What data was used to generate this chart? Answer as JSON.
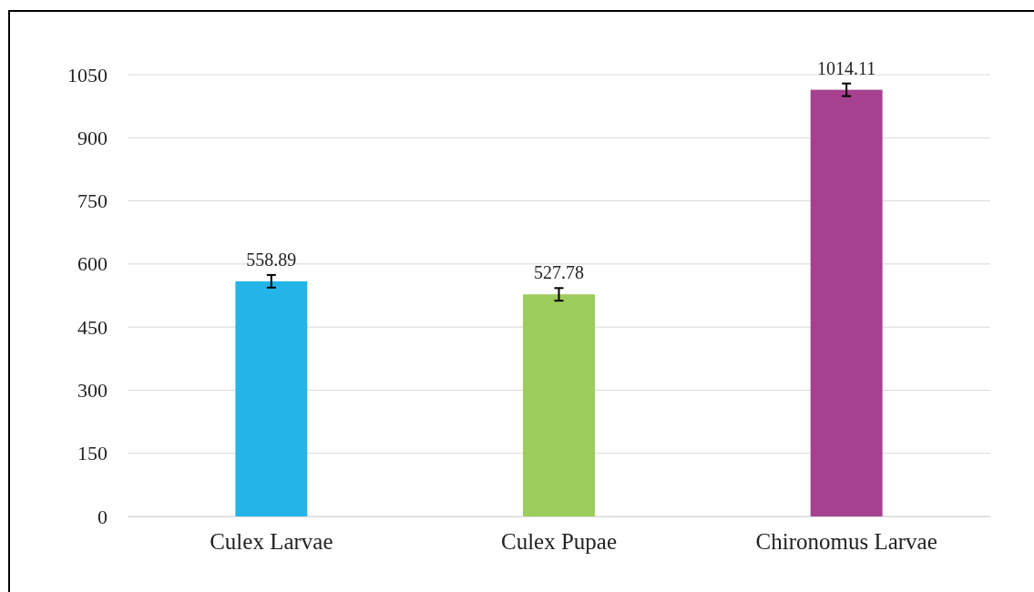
{
  "chart_data": {
    "type": "bar",
    "categories": [
      "Culex Larvae",
      "Culex Pupae",
      "Chironomus Larvae"
    ],
    "values": [
      558.89,
      527.78,
      1014.11
    ],
    "colors": [
      "#23b5e8",
      "#9ccc5c",
      "#a5418f"
    ],
    "errors": [
      15,
      15,
      15
    ],
    "ylim": [
      0,
      1050
    ],
    "yticks": [
      0,
      150,
      300,
      450,
      600,
      750,
      900,
      1050
    ],
    "grid": "y",
    "data_labels": true
  }
}
